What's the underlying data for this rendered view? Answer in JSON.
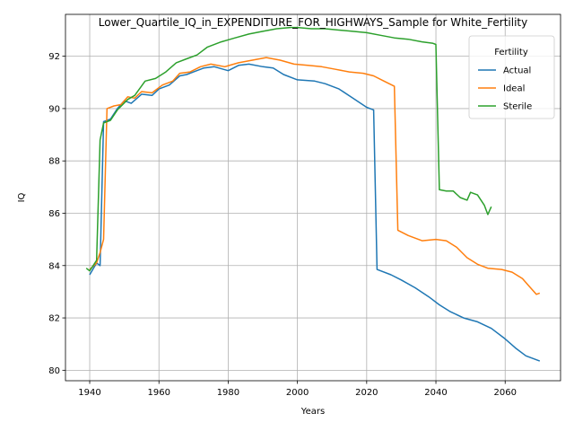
{
  "chart_data": {
    "type": "line",
    "title": "Lower_Quartile_IQ_in_EXPENDITURE_FOR_HIGHWAYS_Sample for White_Fertility",
    "xlabel": "Years",
    "ylabel": "IQ",
    "xlim": [
      1933,
      2076
    ],
    "ylim": [
      79.6,
      93.6
    ],
    "x_ticks": [
      1940,
      1960,
      1980,
      2000,
      2020,
      2040,
      2060
    ],
    "y_ticks": [
      80,
      82,
      84,
      86,
      88,
      90,
      92
    ],
    "grid": true,
    "legend": {
      "title": "Fertility",
      "placement": "top-right"
    },
    "series": [
      {
        "name": "Actual",
        "color": "#1f77b4",
        "points": [
          [
            1940,
            83.65
          ],
          [
            1942,
            84.1
          ],
          [
            1943,
            84.0
          ],
          [
            1944,
            89.5
          ],
          [
            1946,
            89.6
          ],
          [
            1948,
            90.0
          ],
          [
            1950,
            90.3
          ],
          [
            1952,
            90.2
          ],
          [
            1955,
            90.55
          ],
          [
            1958,
            90.5
          ],
          [
            1960,
            90.75
          ],
          [
            1963,
            90.9
          ],
          [
            1966,
            91.25
          ],
          [
            1968,
            91.3
          ],
          [
            1970,
            91.4
          ],
          [
            1973,
            91.55
          ],
          [
            1976,
            91.6
          ],
          [
            1980,
            91.45
          ],
          [
            1983,
            91.65
          ],
          [
            1986,
            91.7
          ],
          [
            1990,
            91.6
          ],
          [
            1993,
            91.55
          ],
          [
            1996,
            91.3
          ],
          [
            2000,
            91.1
          ],
          [
            2005,
            91.05
          ],
          [
            2008,
            90.95
          ],
          [
            2012,
            90.75
          ],
          [
            2016,
            90.4
          ],
          [
            2020,
            90.05
          ],
          [
            2022,
            89.95
          ],
          [
            2023,
            83.85
          ],
          [
            2027,
            83.65
          ],
          [
            2030,
            83.45
          ],
          [
            2034,
            83.15
          ],
          [
            2038,
            82.8
          ],
          [
            2041,
            82.5
          ],
          [
            2044,
            82.25
          ],
          [
            2048,
            82.0
          ],
          [
            2052,
            81.85
          ],
          [
            2056,
            81.6
          ],
          [
            2060,
            81.2
          ],
          [
            2063,
            80.85
          ],
          [
            2066,
            80.55
          ],
          [
            2068,
            80.45
          ],
          [
            2070,
            80.35
          ]
        ]
      },
      {
        "name": "Ideal",
        "color": "#ff7f0e",
        "points": [
          [
            1940,
            83.85
          ],
          [
            1942,
            84.1
          ],
          [
            1943,
            84.5
          ],
          [
            1944,
            85.0
          ],
          [
            1945,
            90.0
          ],
          [
            1947,
            90.1
          ],
          [
            1949,
            90.15
          ],
          [
            1951,
            90.45
          ],
          [
            1953,
            90.4
          ],
          [
            1955,
            90.65
          ],
          [
            1958,
            90.6
          ],
          [
            1961,
            90.9
          ],
          [
            1964,
            91.05
          ],
          [
            1966,
            91.35
          ],
          [
            1969,
            91.4
          ],
          [
            1972,
            91.6
          ],
          [
            1975,
            91.7
          ],
          [
            1979,
            91.6
          ],
          [
            1983,
            91.75
          ],
          [
            1987,
            91.85
          ],
          [
            1991,
            91.95
          ],
          [
            1995,
            91.85
          ],
          [
            1999,
            91.7
          ],
          [
            2003,
            91.65
          ],
          [
            2007,
            91.6
          ],
          [
            2011,
            91.5
          ],
          [
            2015,
            91.4
          ],
          [
            2019,
            91.35
          ],
          [
            2022,
            91.25
          ],
          [
            2025,
            91.05
          ],
          [
            2028,
            90.85
          ],
          [
            2029,
            85.35
          ],
          [
            2032,
            85.15
          ],
          [
            2036,
            84.95
          ],
          [
            2040,
            85.0
          ],
          [
            2043,
            84.95
          ],
          [
            2046,
            84.7
          ],
          [
            2049,
            84.3
          ],
          [
            2052,
            84.05
          ],
          [
            2055,
            83.9
          ],
          [
            2059,
            83.85
          ],
          [
            2062,
            83.75
          ],
          [
            2065,
            83.5
          ],
          [
            2067,
            83.2
          ],
          [
            2069,
            82.9
          ],
          [
            2070,
            82.95
          ]
        ]
      },
      {
        "name": "Sterile",
        "color": "#2ca02c",
        "points": [
          [
            1939,
            83.9
          ],
          [
            1940,
            83.8
          ],
          [
            1941,
            84.0
          ],
          [
            1942,
            84.2
          ],
          [
            1943,
            88.8
          ],
          [
            1944,
            89.45
          ],
          [
            1946,
            89.55
          ],
          [
            1948,
            89.95
          ],
          [
            1951,
            90.35
          ],
          [
            1953,
            90.5
          ],
          [
            1956,
            91.05
          ],
          [
            1959,
            91.15
          ],
          [
            1962,
            91.4
          ],
          [
            1965,
            91.75
          ],
          [
            1968,
            91.9
          ],
          [
            1971,
            92.05
          ],
          [
            1974,
            92.35
          ],
          [
            1978,
            92.55
          ],
          [
            1982,
            92.7
          ],
          [
            1986,
            92.85
          ],
          [
            1990,
            92.95
          ],
          [
            1994,
            93.05
          ],
          [
            1998,
            93.1
          ],
          [
            2000,
            93.1
          ],
          [
            2004,
            93.05
          ],
          [
            2008,
            93.05
          ],
          [
            2012,
            93.0
          ],
          [
            2016,
            92.95
          ],
          [
            2020,
            92.9
          ],
          [
            2024,
            92.8
          ],
          [
            2028,
            92.7
          ],
          [
            2032,
            92.65
          ],
          [
            2036,
            92.55
          ],
          [
            2039,
            92.5
          ],
          [
            2040,
            92.45
          ],
          [
            2041,
            86.9
          ],
          [
            2043,
            86.85
          ],
          [
            2045,
            86.85
          ],
          [
            2047,
            86.6
          ],
          [
            2049,
            86.5
          ],
          [
            2050,
            86.8
          ],
          [
            2052,
            86.7
          ],
          [
            2054,
            86.3
          ],
          [
            2055,
            85.95
          ],
          [
            2056,
            86.25
          ]
        ]
      }
    ]
  }
}
